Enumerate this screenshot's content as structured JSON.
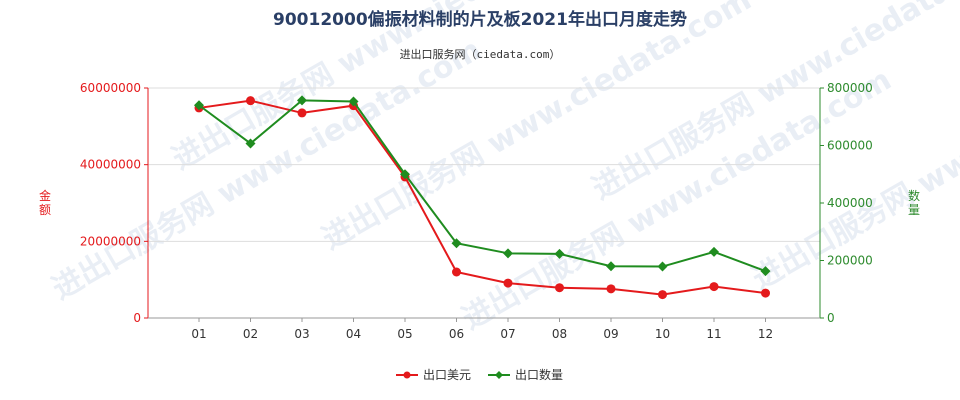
{
  "chart_data": {
    "type": "line",
    "title": "90012000偏振材料制的片及板2021年出口月度走势",
    "subtitle": "进出口服务网（ciedata.com）",
    "watermark": "进出口服务网 www.ciedata.com",
    "categories": [
      "01",
      "02",
      "03",
      "04",
      "05",
      "06",
      "07",
      "08",
      "09",
      "10",
      "11",
      "12"
    ],
    "left_axis": {
      "label": "金额",
      "ylim": [
        0,
        60000000
      ],
      "ticks": [
        0,
        20000000,
        40000000,
        60000000
      ],
      "tick_labels": [
        "0",
        "20000000",
        "40000000",
        "60000000"
      ]
    },
    "right_axis": {
      "label": "数量",
      "ylim": [
        0,
        800000
      ],
      "ticks": [
        0,
        200000,
        400000,
        600000,
        800000
      ],
      "tick_labels": [
        "0",
        "200000",
        "400000",
        "600000",
        "800000"
      ]
    },
    "series": [
      {
        "name": "出口美元",
        "axis": "left",
        "color": "#e41a1c",
        "values": [
          54800000,
          56700000,
          53500000,
          55400000,
          36800000,
          12000000,
          9100000,
          7900000,
          7600000,
          6100000,
          8200000,
          6500000
        ]
      },
      {
        "name": "出口数量",
        "axis": "right",
        "color": "#1f8c1f",
        "values": [
          740000,
          607000,
          757000,
          753000,
          500000,
          260000,
          225000,
          223000,
          180000,
          179000,
          230000,
          163000
        ]
      }
    ],
    "grid": true,
    "legend_position": "bottom-center"
  }
}
